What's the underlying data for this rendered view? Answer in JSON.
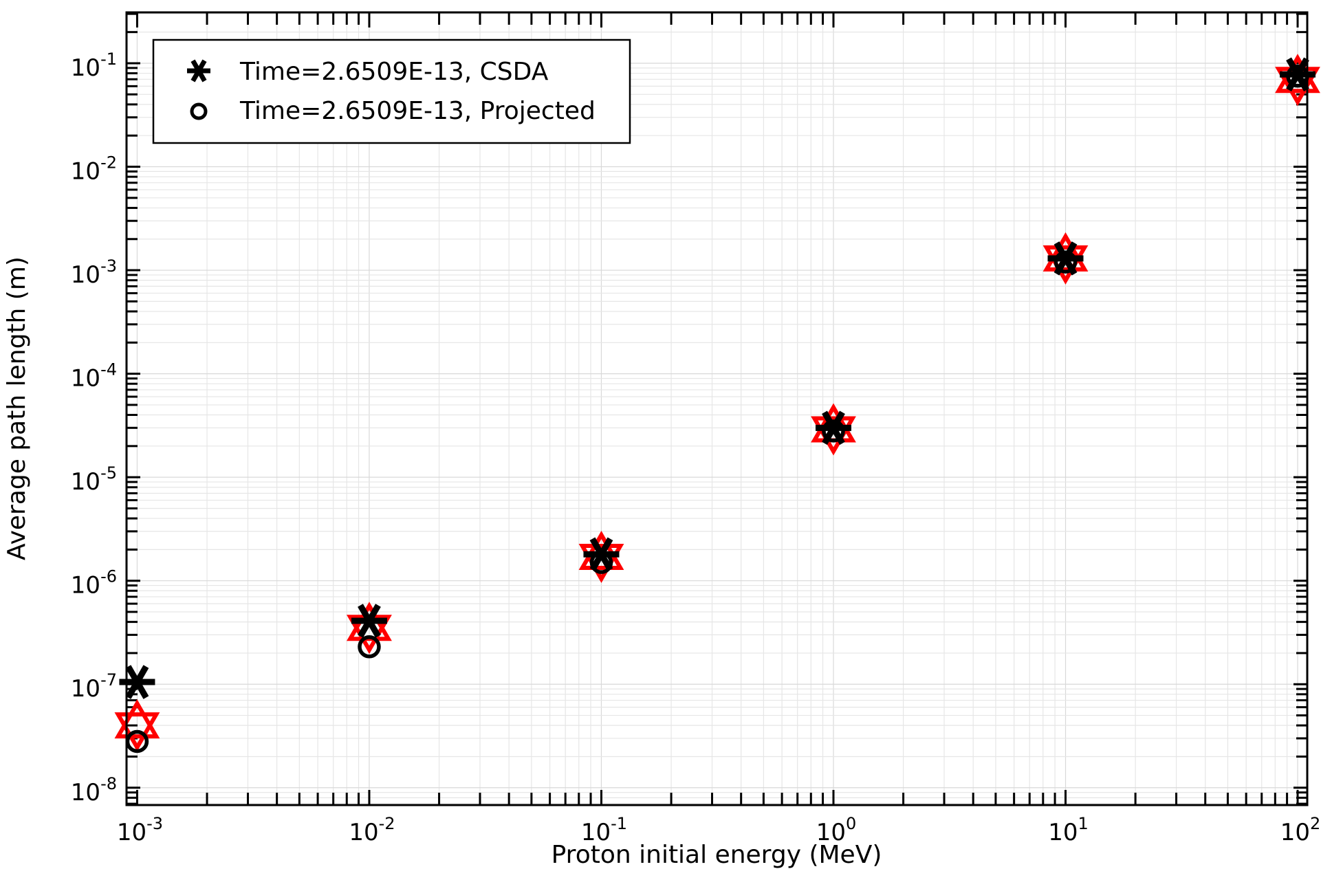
{
  "chart_data": {
    "type": "scatter",
    "title": "",
    "xlabel": "Proton initial energy (MeV)",
    "ylabel": "Average path length (m)",
    "xscale": "log",
    "yscale": "log",
    "xlim": [
      0.0009,
      110
    ],
    "ylim": [
      6.8e-09,
      0.31
    ],
    "grid": true,
    "legend_position": "top-left",
    "x_ticks": [
      {
        "value": 0.001,
        "base": "10",
        "exp": "-3"
      },
      {
        "value": 0.01,
        "base": "10",
        "exp": "-2"
      },
      {
        "value": 0.1,
        "base": "10",
        "exp": "-1"
      },
      {
        "value": 1,
        "base": "10",
        "exp": "0"
      },
      {
        "value": 10,
        "base": "10",
        "exp": "1"
      },
      {
        "value": 100,
        "base": "10",
        "exp": "2"
      }
    ],
    "y_ticks": [
      {
        "value": 1e-08,
        "base": "10",
        "exp": "-8"
      },
      {
        "value": 1e-07,
        "base": "10",
        "exp": "-7"
      },
      {
        "value": 1e-06,
        "base": "10",
        "exp": "-6"
      },
      {
        "value": 1e-05,
        "base": "10",
        "exp": "-5"
      },
      {
        "value": 0.0001,
        "base": "10",
        "exp": "-4"
      },
      {
        "value": 0.001,
        "base": "10",
        "exp": "-3"
      },
      {
        "value": 0.01,
        "base": "10",
        "exp": "-2"
      },
      {
        "value": 0.1,
        "base": "10",
        "exp": "-1"
      }
    ],
    "x": [
      0.001,
      0.01,
      0.1,
      1,
      10,
      100
    ],
    "series": [
      {
        "name": "Time=2.6509E-13, CSDA",
        "marker": "asterisk",
        "color": "#000000",
        "in_legend": true,
        "values": [
          1.05e-07,
          4.1e-07,
          1.8e-06,
          3e-05,
          0.0013,
          0.078
        ]
      },
      {
        "name": "Time=2.6509E-13, Projected",
        "marker": "circle",
        "color": "#000000",
        "in_legend": true,
        "values": [
          2.8e-08,
          2.3e-07,
          1.5e-06,
          2.8e-05,
          0.0012,
          0.075
        ]
      },
      {
        "marker": "hexagram",
        "color": "#ff0000",
        "in_legend": false,
        "values": [
          4e-08,
          3.5e-07,
          1.7e-06,
          2.9e-05,
          0.0013,
          0.069
        ]
      }
    ]
  }
}
